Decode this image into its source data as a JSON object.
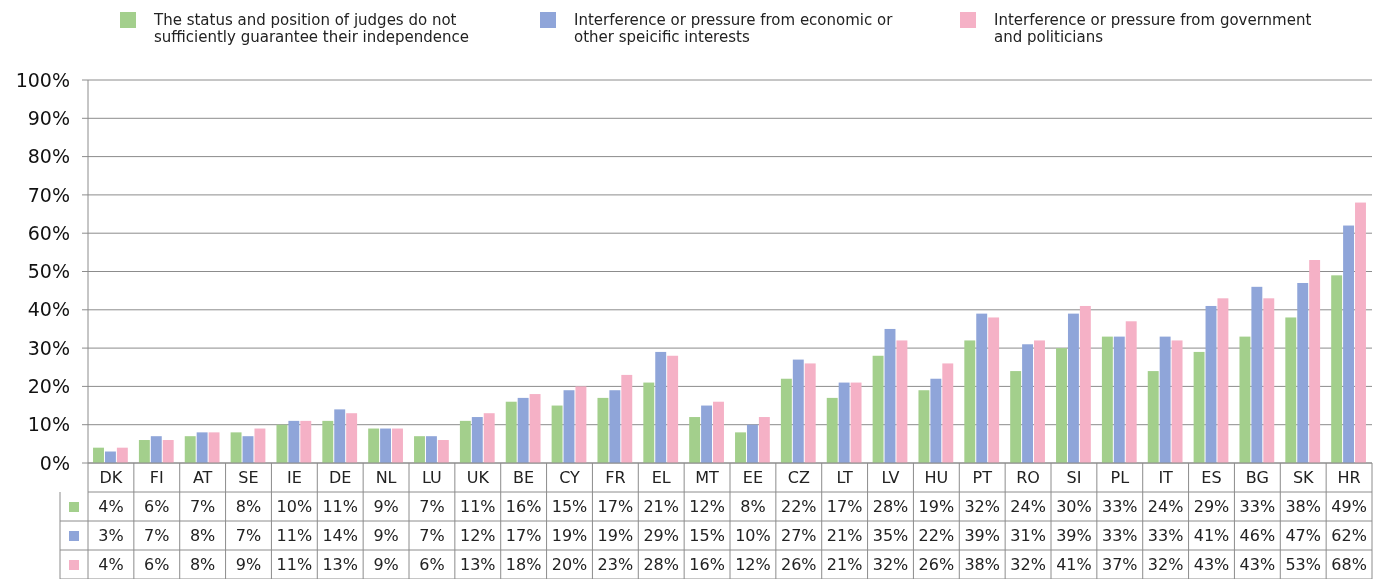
{
  "chart_data": {
    "type": "bar",
    "categories": [
      "DK",
      "FI",
      "AT",
      "SE",
      "IE",
      "DE",
      "NL",
      "LU",
      "UK",
      "BE",
      "CY",
      "FR",
      "EL",
      "MT",
      "EE",
      "CZ",
      "LT",
      "LV",
      "HU",
      "PT",
      "RO",
      "SI",
      "PL",
      "IT",
      "ES",
      "BG",
      "SK",
      "HR"
    ],
    "series": [
      {
        "name": "The status and position of judges do not sufficiently guarantee their independence",
        "color": "#a3cf8c",
        "values": [
          4,
          6,
          7,
          8,
          10,
          11,
          9,
          7,
          11,
          16,
          15,
          17,
          21,
          12,
          8,
          22,
          17,
          28,
          19,
          32,
          24,
          30,
          33,
          24,
          29,
          33,
          38,
          49
        ],
        "value_labels": [
          "4%",
          "6%",
          "7%",
          "8%",
          "10%",
          "11%",
          "9%",
          "7%",
          "11%",
          "16%",
          "15%",
          "17%",
          "21%",
          "12%",
          "8%",
          "22%",
          "17%",
          "28%",
          "19%",
          "32%",
          "24%",
          "30%",
          "33%",
          "24%",
          "29%",
          "33%",
          "38%",
          "49%"
        ]
      },
      {
        "name": "Interference or pressure from economic or other speicific interests",
        "color": "#8fa5d9",
        "values": [
          3,
          7,
          8,
          7,
          11,
          14,
          9,
          7,
          12,
          17,
          19,
          19,
          29,
          15,
          10,
          27,
          21,
          35,
          22,
          39,
          31,
          39,
          33,
          33,
          41,
          46,
          47,
          62
        ],
        "value_labels": [
          "3%",
          "7%",
          "8%",
          "7%",
          "11%",
          "14%",
          "9%",
          "7%",
          "12%",
          "17%",
          "19%",
          "19%",
          "29%",
          "15%",
          "10%",
          "27%",
          "21%",
          "35%",
          "22%",
          "39%",
          "31%",
          "39%",
          "33%",
          "33%",
          "41%",
          "46%",
          "47%",
          "62%"
        ]
      },
      {
        "name": "Interference or pressure from government and politicians",
        "color": "#f5b1c6",
        "values": [
          4,
          6,
          8,
          9,
          11,
          13,
          9,
          6,
          13,
          18,
          20,
          23,
          28,
          16,
          12,
          26,
          21,
          32,
          26,
          38,
          32,
          41,
          37,
          32,
          43,
          43,
          53,
          68
        ],
        "value_labels": [
          "4%",
          "6%",
          "8%",
          "9%",
          "11%",
          "13%",
          "9%",
          "6%",
          "13%",
          "18%",
          "20%",
          "23%",
          "28%",
          "16%",
          "12%",
          "26%",
          "21%",
          "32%",
          "26%",
          "38%",
          "32%",
          "41%",
          "37%",
          "32%",
          "43%",
          "43%",
          "53%",
          "68%"
        ]
      }
    ],
    "ylim": [
      0,
      100
    ],
    "yticks": [
      {
        "value": 0,
        "label": "0%"
      },
      {
        "value": 10,
        "label": "10%"
      },
      {
        "value": 20,
        "label": "20%"
      },
      {
        "value": 30,
        "label": "30%"
      },
      {
        "value": 40,
        "label": "40%"
      },
      {
        "value": 50,
        "label": "50%"
      },
      {
        "value": 60,
        "label": "60%"
      },
      {
        "value": 70,
        "label": "70%"
      },
      {
        "value": 80,
        "label": "80%"
      },
      {
        "value": 90,
        "label": "90%"
      },
      {
        "value": 100,
        "label": "100%"
      }
    ],
    "grid": "y",
    "legend": "top"
  }
}
